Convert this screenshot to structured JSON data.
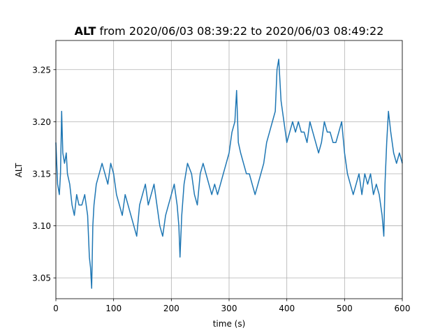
{
  "chart_data": {
    "type": "line",
    "title_bold": "ALT",
    "title_rest": " from 2020/06/03 08:39:22 to 2020/06/03 08:49:22",
    "xlabel": "time (s)",
    "ylabel": "ALT",
    "xlim": [
      0,
      600
    ],
    "ylim": [
      3.03,
      3.278
    ],
    "xticks": [
      0,
      100,
      200,
      300,
      400,
      500,
      600
    ],
    "yticks": [
      3.05,
      3.1,
      3.15,
      3.2,
      3.25
    ],
    "ytick_labels": [
      "3.05",
      "3.10",
      "3.15",
      "3.20",
      "3.25"
    ],
    "grid": true,
    "line_color": "#1f77b4",
    "series": [
      {
        "x": [
          0,
          3,
          6,
          8,
          10,
          12,
          15,
          18,
          20,
          24,
          28,
          32,
          36,
          40,
          45,
          50,
          55,
          58,
          60,
          62,
          64,
          66,
          70,
          75,
          80,
          85,
          90,
          95,
          100,
          105,
          110,
          115,
          120,
          125,
          130,
          135,
          140,
          145,
          150,
          155,
          160,
          165,
          170,
          175,
          180,
          185,
          190,
          195,
          200,
          205,
          210,
          213,
          215,
          218,
          222,
          228,
          235,
          240,
          245,
          250,
          255,
          260,
          265,
          270,
          275,
          280,
          285,
          290,
          295,
          300,
          305,
          310,
          313,
          316,
          320,
          325,
          330,
          335,
          340,
          345,
          350,
          355,
          360,
          365,
          370,
          375,
          380,
          383,
          386,
          390,
          395,
          400,
          405,
          410,
          415,
          420,
          425,
          430,
          435,
          440,
          445,
          450,
          455,
          460,
          465,
          470,
          475,
          480,
          485,
          490,
          495,
          500,
          505,
          510,
          515,
          520,
          525,
          530,
          535,
          540,
          545,
          550,
          555,
          560,
          565,
          568,
          570,
          573,
          576,
          580,
          585,
          590,
          595,
          600
        ],
        "values": [
          3.18,
          3.14,
          3.13,
          3.15,
          3.21,
          3.17,
          3.16,
          3.17,
          3.15,
          3.14,
          3.12,
          3.11,
          3.13,
          3.12,
          3.12,
          3.13,
          3.11,
          3.07,
          3.06,
          3.04,
          3.1,
          3.12,
          3.14,
          3.15,
          3.16,
          3.15,
          3.14,
          3.16,
          3.15,
          3.13,
          3.12,
          3.11,
          3.13,
          3.12,
          3.11,
          3.1,
          3.09,
          3.12,
          3.13,
          3.14,
          3.12,
          3.13,
          3.14,
          3.12,
          3.1,
          3.09,
          3.11,
          3.12,
          3.13,
          3.14,
          3.12,
          3.1,
          3.07,
          3.11,
          3.14,
          3.16,
          3.15,
          3.13,
          3.12,
          3.15,
          3.16,
          3.15,
          3.14,
          3.13,
          3.14,
          3.13,
          3.14,
          3.15,
          3.16,
          3.17,
          3.19,
          3.2,
          3.23,
          3.18,
          3.17,
          3.16,
          3.15,
          3.15,
          3.14,
          3.13,
          3.14,
          3.15,
          3.16,
          3.18,
          3.19,
          3.2,
          3.21,
          3.25,
          3.26,
          3.22,
          3.2,
          3.18,
          3.19,
          3.2,
          3.19,
          3.2,
          3.19,
          3.19,
          3.18,
          3.2,
          3.19,
          3.18,
          3.17,
          3.18,
          3.2,
          3.19,
          3.19,
          3.18,
          3.18,
          3.19,
          3.2,
          3.17,
          3.15,
          3.14,
          3.13,
          3.14,
          3.15,
          3.13,
          3.15,
          3.14,
          3.15,
          3.13,
          3.14,
          3.13,
          3.11,
          3.09,
          3.14,
          3.18,
          3.21,
          3.19,
          3.17,
          3.16,
          3.17,
          3.16
        ]
      }
    ]
  }
}
